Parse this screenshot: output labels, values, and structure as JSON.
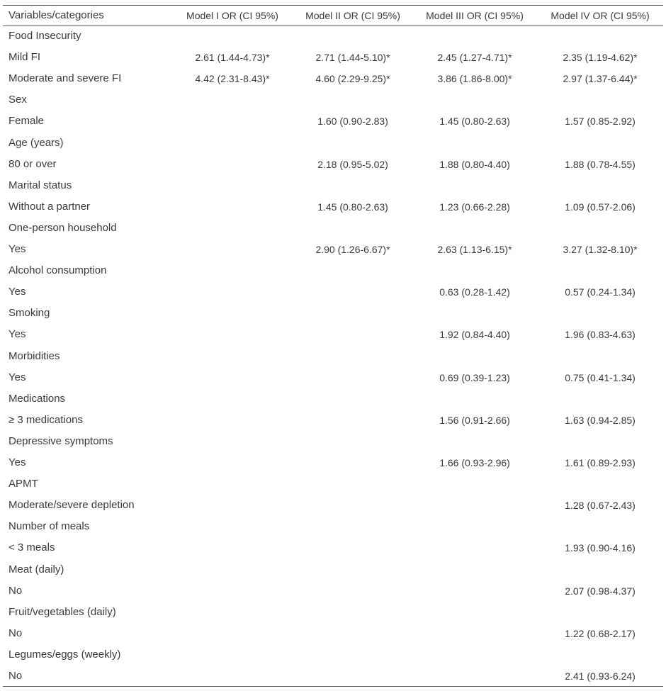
{
  "table": {
    "columns": [
      "Variables/categories",
      "Model I OR (CI 95%)",
      "Model II OR (CI 95%)",
      "Model III OR (CI 95%)",
      "Model IV  OR (CI 95%)"
    ],
    "rows": [
      {
        "label": "Food Insecurity",
        "cells": [
          null,
          null,
          null,
          null
        ]
      },
      {
        "label": "Mild FI",
        "cells": [
          "2.61 (1.44-4.73)*",
          "2.71 (1.44-5.10)*",
          "2.45 (1.27-4.71)*",
          "2.35 (1.19-4.62)*"
        ]
      },
      {
        "label": "Moderate and severe FI",
        "cells": [
          "4.42 (2.31-8.43)*",
          "4.60 (2.29-9.25)*",
          "3.86 (1.86-8.00)*",
          "2.97 (1.37-6.44)*"
        ]
      },
      {
        "label": "Sex",
        "cells": [
          null,
          null,
          null,
          null
        ]
      },
      {
        "label": "Female",
        "cells": [
          null,
          "1.60 (0.90-2.83)",
          "1.45 (0.80-2.63)",
          "1.57 (0.85-2.92)"
        ]
      },
      {
        "label": "Age (years)",
        "cells": [
          null,
          null,
          null,
          null
        ]
      },
      {
        "label": "80 or over",
        "cells": [
          null,
          "2.18 (0.95-5.02)",
          "1.88 (0.80-4.40)",
          "1.88 (0.78-4.55)"
        ]
      },
      {
        "label": "Marital status",
        "cells": [
          null,
          null,
          null,
          null
        ]
      },
      {
        "label": "Without a partner",
        "cells": [
          null,
          "1.45 (0.80-2.63)",
          "1.23 (0.66-2.28)",
          "1.09 (0.57-2.06)"
        ]
      },
      {
        "label": "One-person household",
        "cells": [
          null,
          null,
          null,
          null
        ]
      },
      {
        "label": "Yes",
        "cells": [
          null,
          "2.90 (1.26-6.67)*",
          "2.63 (1.13-6.15)*",
          "3.27 (1.32-8.10)*"
        ]
      },
      {
        "label": "Alcohol consumption",
        "cells": [
          null,
          null,
          null,
          null
        ]
      },
      {
        "label": "Yes",
        "cells": [
          null,
          null,
          "0.63 (0.28-1.42)",
          "0.57 (0.24-1.34)"
        ]
      },
      {
        "label": "Smoking",
        "cells": [
          null,
          null,
          null,
          null
        ]
      },
      {
        "label": "Yes",
        "cells": [
          null,
          null,
          "1.92 (0.84-4.40)",
          "1.96 (0.83-4.63)"
        ]
      },
      {
        "label": "Morbidities",
        "cells": [
          null,
          null,
          null,
          null
        ]
      },
      {
        "label": "Yes",
        "cells": [
          null,
          null,
          "0.69 (0.39-1.23)",
          "0.75 (0.41-1.34)"
        ]
      },
      {
        "label": "Medications",
        "cells": [
          null,
          null,
          null,
          null
        ]
      },
      {
        "label": "≥ 3 medications",
        "cells": [
          null,
          null,
          "1.56 (0.91-2.66)",
          "1.63 (0.94-2.85)"
        ]
      },
      {
        "label": "Depressive symptoms",
        "cells": [
          null,
          null,
          null,
          null
        ]
      },
      {
        "label": "Yes",
        "cells": [
          null,
          null,
          "1.66 (0.93-2.96)",
          "1.61 (0.89-2.93)"
        ]
      },
      {
        "label": "APMT",
        "cells": [
          null,
          null,
          null,
          null
        ]
      },
      {
        "label": "Moderate/severe depletion",
        "cells": [
          null,
          null,
          null,
          "1.28 (0.67-2.43)"
        ]
      },
      {
        "label": "Number of meals",
        "cells": [
          null,
          null,
          null,
          null
        ]
      },
      {
        "label": "< 3 meals",
        "cells": [
          null,
          null,
          null,
          "1.93 (0.90-4.16)"
        ]
      },
      {
        "label": "Meat (daily)",
        "cells": [
          null,
          null,
          null,
          null
        ]
      },
      {
        "label": "No",
        "cells": [
          null,
          null,
          null,
          "2.07 (0.98-4.37)"
        ]
      },
      {
        "label": "Fruit/vegetables (daily)",
        "cells": [
          null,
          null,
          null,
          null
        ]
      },
      {
        "label": "No",
        "cells": [
          null,
          null,
          null,
          "1.22 (0.68-2.17)"
        ]
      },
      {
        "label": "Legumes/eggs (weekly)",
        "cells": [
          null,
          null,
          null,
          null
        ]
      },
      {
        "label": "No",
        "cells": [
          null,
          null,
          null,
          "2.41 (0.93-6.24)"
        ]
      }
    ]
  }
}
